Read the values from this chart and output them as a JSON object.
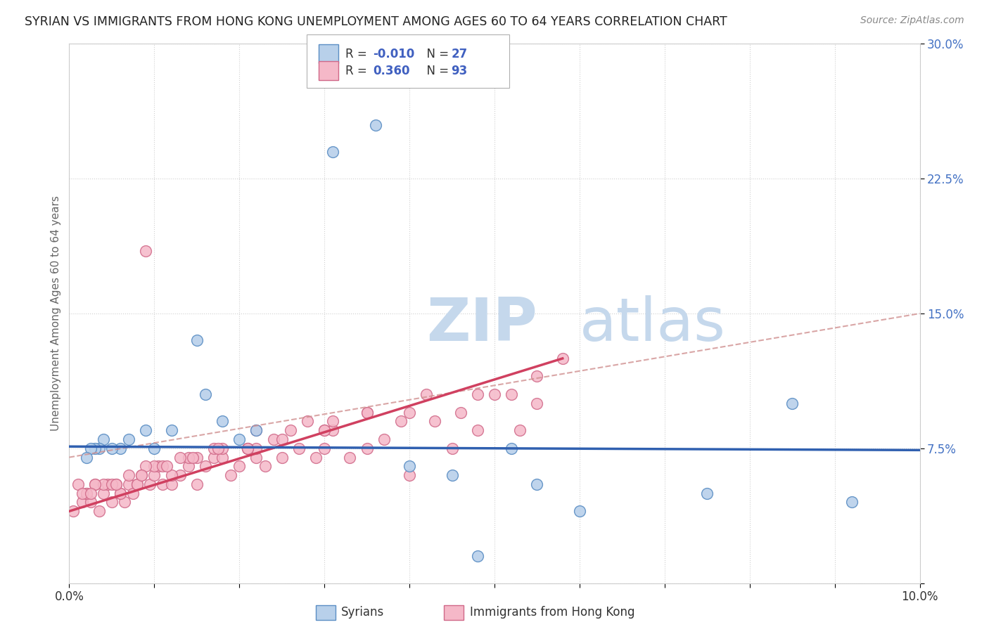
{
  "title": "SYRIAN VS IMMIGRANTS FROM HONG KONG UNEMPLOYMENT AMONG AGES 60 TO 64 YEARS CORRELATION CHART",
  "source": "Source: ZipAtlas.com",
  "ylabel": "Unemployment Among Ages 60 to 64 years",
  "xlim": [
    0.0,
    10.0
  ],
  "ylim": [
    0.0,
    30.0
  ],
  "yticks": [
    0.0,
    7.5,
    15.0,
    22.5,
    30.0
  ],
  "ytick_labels": [
    "",
    "7.5%",
    "15.0%",
    "22.5%",
    "30.0%"
  ],
  "syrians_R": -0.01,
  "syrians_N": 27,
  "hk_R": 0.36,
  "hk_N": 93,
  "syrian_fill": "#b8d0ea",
  "syrian_edge": "#5b8ec4",
  "hk_fill": "#f5b8c8",
  "hk_edge": "#d06888",
  "syrian_line_color": "#3060b0",
  "hk_line_color": "#d04060",
  "dashed_line_color": "#d09090",
  "watermark_color": "#d8e4f0",
  "background_color": "#ffffff",
  "grid_color": "#d0d0d0",
  "title_color": "#222222",
  "title_fontsize": 12.5,
  "label_fontsize": 11,
  "tick_color": "#4472c4",
  "legend_R_color": "#4060c0",
  "syrians_x": [
    3.1,
    3.6,
    1.5,
    1.6,
    0.9,
    0.7,
    0.6,
    0.5,
    0.4,
    0.35,
    0.3,
    0.25,
    0.2,
    1.2,
    1.8,
    2.2,
    2.0,
    4.5,
    4.0,
    5.5,
    5.2,
    6.0,
    8.5,
    9.2,
    7.5,
    4.8,
    1.0
  ],
  "syrians_y": [
    24.0,
    25.5,
    13.5,
    10.5,
    8.5,
    8.0,
    7.5,
    7.5,
    8.0,
    7.5,
    7.5,
    7.5,
    7.0,
    8.5,
    9.0,
    8.5,
    8.0,
    6.0,
    6.5,
    5.5,
    7.5,
    4.0,
    10.0,
    4.5,
    5.0,
    1.5,
    7.5
  ],
  "hk_x": [
    0.05,
    0.1,
    0.15,
    0.2,
    0.25,
    0.3,
    0.35,
    0.4,
    0.45,
    0.5,
    0.55,
    0.6,
    0.65,
    0.7,
    0.75,
    0.8,
    0.85,
    0.9,
    0.95,
    1.0,
    1.05,
    1.1,
    1.2,
    1.3,
    1.4,
    1.5,
    1.6,
    1.7,
    1.8,
    1.9,
    2.0,
    2.1,
    2.2,
    2.3,
    2.5,
    2.7,
    2.9,
    3.0,
    3.1,
    3.3,
    3.5,
    3.7,
    4.0,
    4.3,
    4.5,
    4.8,
    5.0,
    5.3,
    5.5,
    5.8,
    0.2,
    0.4,
    0.6,
    0.8,
    1.0,
    1.2,
    1.5,
    1.8,
    2.2,
    2.6,
    3.0,
    3.5,
    4.0,
    4.8,
    5.5,
    0.15,
    0.3,
    0.5,
    0.7,
    0.9,
    1.1,
    1.4,
    1.7,
    2.1,
    2.4,
    2.8,
    0.25,
    0.55,
    0.85,
    1.15,
    1.45,
    1.75,
    2.1,
    2.5,
    3.0,
    3.5,
    4.2,
    1.3,
    2.2,
    3.1,
    3.9,
    4.6,
    5.2
  ],
  "hk_y": [
    4.0,
    5.5,
    4.5,
    5.0,
    4.5,
    5.5,
    4.0,
    5.0,
    5.5,
    4.5,
    5.5,
    5.0,
    4.5,
    5.5,
    5.0,
    5.5,
    6.0,
    18.5,
    5.5,
    6.0,
    6.5,
    5.5,
    5.5,
    6.0,
    6.5,
    5.5,
    6.5,
    7.0,
    7.0,
    6.0,
    6.5,
    7.5,
    7.0,
    6.5,
    7.0,
    7.5,
    7.0,
    7.5,
    8.5,
    7.0,
    7.5,
    8.0,
    6.0,
    9.0,
    7.5,
    8.5,
    10.5,
    8.5,
    10.0,
    12.5,
    5.0,
    5.5,
    5.0,
    5.5,
    6.5,
    6.0,
    7.0,
    7.5,
    7.5,
    8.5,
    8.5,
    9.5,
    9.5,
    10.5,
    11.5,
    5.0,
    5.5,
    5.5,
    6.0,
    6.5,
    6.5,
    7.0,
    7.5,
    7.5,
    8.0,
    9.0,
    5.0,
    5.5,
    6.0,
    6.5,
    7.0,
    7.5,
    7.5,
    8.0,
    8.5,
    9.5,
    10.5,
    7.0,
    8.5,
    9.0,
    9.0,
    9.5,
    10.5
  ],
  "syrian_trendline_x": [
    0.0,
    10.0
  ],
  "syrian_trendline_y": [
    7.6,
    7.4
  ],
  "hk_trendline_x": [
    0.0,
    5.8
  ],
  "hk_trendline_y": [
    4.0,
    12.5
  ],
  "dashed_trendline_x": [
    0.0,
    10.0
  ],
  "dashed_trendline_y": [
    7.0,
    15.0
  ]
}
